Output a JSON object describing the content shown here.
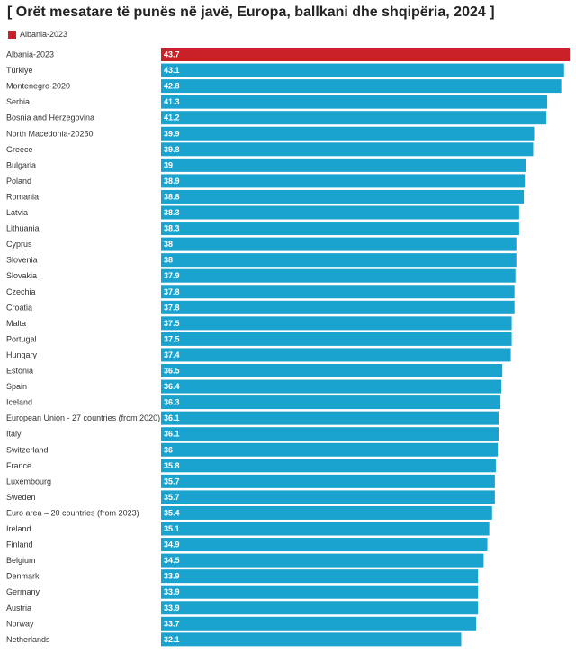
{
  "title": "[ Orët mesatare të punës në javë, Europa, ballkani dhe shqipëria, 2024 ]",
  "legend": {
    "label": "Albania-2023",
    "color": "#c92127"
  },
  "colors": {
    "bar": "#1aa3cf",
    "highlight": "#c92127"
  },
  "chart_data": {
    "type": "bar",
    "orientation": "horizontal",
    "title": "[ Orët mesatare të punës në javë, Europa, ballkani dhe shqipëria, 2024 ]",
    "xlim": [
      0,
      43.7
    ],
    "highlight_category": "Albania-2023",
    "categories": [
      "Albania-2023",
      "Türkiye",
      "Montenegro-2020",
      "Serbia",
      "Bosnia and Herzegovina",
      "North Macedonia-20250",
      "Greece",
      "Bulgaria",
      "Poland",
      "Romania",
      "Latvia",
      "Lithuania",
      "Cyprus",
      "Slovenia",
      "Slovakia",
      "Czechia",
      "Croatia",
      "Malta",
      "Portugal",
      "Hungary",
      "Estonia",
      "Spain",
      "Iceland",
      "European Union - 27 countries (from 2020)",
      "Italy",
      "Switzerland",
      "France",
      "Luxembourg",
      "Sweden",
      "Euro area – 20 countries (from 2023)",
      "Ireland",
      "Finland",
      "Belgium",
      "Denmark",
      "Germany",
      "Austria",
      "Norway",
      "Netherlands"
    ],
    "values": [
      43.7,
      43.1,
      42.8,
      41.3,
      41.2,
      39.9,
      39.8,
      39,
      38.9,
      38.8,
      38.3,
      38.3,
      38,
      38,
      37.9,
      37.8,
      37.8,
      37.5,
      37.5,
      37.4,
      36.5,
      36.4,
      36.3,
      36.1,
      36.1,
      36,
      35.8,
      35.7,
      35.7,
      35.4,
      35.1,
      34.9,
      34.5,
      33.9,
      33.9,
      33.9,
      33.7,
      32.1
    ]
  }
}
